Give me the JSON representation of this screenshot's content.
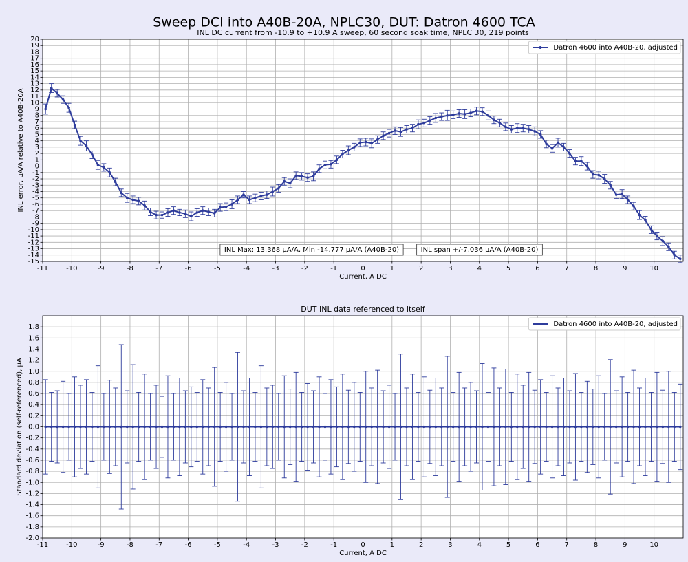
{
  "title": "Sweep DCI into A40B-20A, NPLC30, DUT: Datron 4600 TCA",
  "chart_data": [
    {
      "type": "line",
      "title": "INL DC current from -10.9 to +10.9 A sweep, 60 second soak time, NPLC 30, 219 points",
      "xlabel": "Current, A DC",
      "ylabel": "INL error, μA/A relative to A40B-20A",
      "x": [
        -10.9,
        -10.7,
        -10.5,
        -10.3,
        -10.1,
        -9.9,
        -9.7,
        -9.5,
        -9.3,
        -9.1,
        -8.9,
        -8.7,
        -8.5,
        -8.3,
        -8.1,
        -7.9,
        -7.7,
        -7.5,
        -7.3,
        -7.1,
        -6.9,
        -6.7,
        -6.5,
        -6.3,
        -6.1,
        -5.9,
        -5.7,
        -5.5,
        -5.3,
        -5.1,
        -4.9,
        -4.7,
        -4.5,
        -4.3,
        -4.1,
        -3.9,
        -3.7,
        -3.5,
        -3.3,
        -3.1,
        -2.9,
        -2.7,
        -2.5,
        -2.3,
        -2.1,
        -1.9,
        -1.7,
        -1.5,
        -1.3,
        -1.1,
        -0.9,
        -0.7,
        -0.5,
        -0.3,
        -0.1,
        0.1,
        0.3,
        0.5,
        0.7,
        0.9,
        1.1,
        1.3,
        1.5,
        1.7,
        1.9,
        2.1,
        2.3,
        2.5,
        2.7,
        2.9,
        3.1,
        3.3,
        3.5,
        3.7,
        3.9,
        4.1,
        4.3,
        4.5,
        4.7,
        4.9,
        5.1,
        5.3,
        5.5,
        5.7,
        5.9,
        6.1,
        6.3,
        6.5,
        6.7,
        6.9,
        7.1,
        7.3,
        7.5,
        7.7,
        7.9,
        8.1,
        8.3,
        8.5,
        8.7,
        8.9,
        9.1,
        9.3,
        9.5,
        9.7,
        9.9,
        10.1,
        10.3,
        10.5,
        10.7,
        10.9
      ],
      "series": [
        {
          "name": "Datron 4600 into A40B-20, adjusted",
          "color": "#2e3c9c",
          "values": [
            9.0,
            12.3,
            11.5,
            10.5,
            9.2,
            6.5,
            4.0,
            3.2,
            1.8,
            0.2,
            -0.2,
            -1.0,
            -2.5,
            -4.2,
            -5.0,
            -5.3,
            -5.5,
            -6.2,
            -7.2,
            -7.7,
            -7.7,
            -7.3,
            -7.0,
            -7.3,
            -7.5,
            -7.9,
            -7.3,
            -7.0,
            -7.2,
            -7.4,
            -6.5,
            -6.4,
            -6.0,
            -5.3,
            -4.5,
            -5.3,
            -5.0,
            -4.7,
            -4.5,
            -4.0,
            -3.5,
            -2.4,
            -2.7,
            -1.5,
            -1.6,
            -1.8,
            -1.6,
            -0.4,
            0.2,
            0.3,
            1.0,
            1.9,
            2.5,
            3.0,
            3.7,
            3.8,
            3.6,
            4.2,
            4.8,
            5.2,
            5.6,
            5.4,
            5.8,
            6.0,
            6.6,
            6.8,
            7.2,
            7.6,
            7.8,
            8.0,
            8.1,
            8.3,
            8.2,
            8.4,
            8.7,
            8.6,
            8.0,
            7.3,
            6.8,
            6.2,
            5.8,
            6.0,
            6.0,
            5.8,
            5.5,
            5.0,
            3.5,
            2.8,
            3.7,
            3.0,
            2.0,
            0.8,
            0.8,
            0.0,
            -1.3,
            -1.4,
            -2.0,
            -3.0,
            -4.5,
            -4.4,
            -5.3,
            -6.3,
            -7.7,
            -8.5,
            -10.0,
            -11.0,
            -11.8,
            -12.7,
            -14.0,
            -14.6
          ],
          "errors": [
            0.8,
            0.7,
            0.6,
            0.6,
            0.7,
            0.6,
            0.7,
            0.8,
            0.6,
            0.7,
            0.6,
            0.7,
            0.6,
            0.6,
            0.7,
            0.6,
            0.6,
            0.7,
            0.6,
            0.6,
            0.5,
            0.6,
            0.6,
            0.5,
            0.6,
            0.7,
            0.6,
            0.6,
            0.6,
            0.6,
            0.6,
            0.6,
            0.7,
            0.6,
            0.5,
            0.6,
            0.6,
            0.6,
            0.6,
            0.7,
            0.6,
            0.6,
            0.7,
            0.6,
            0.6,
            0.6,
            0.7,
            0.6,
            0.6,
            0.6,
            0.6,
            0.6,
            0.7,
            0.6,
            0.6,
            0.6,
            0.7,
            0.6,
            0.6,
            0.6,
            0.6,
            0.7,
            0.6,
            0.6,
            0.7,
            0.6,
            0.6,
            0.7,
            0.6,
            0.8,
            0.6,
            0.6,
            0.7,
            0.6,
            0.6,
            0.6,
            0.7,
            0.6,
            0.6,
            0.6,
            0.6,
            0.7,
            0.6,
            0.6,
            0.7,
            0.6,
            0.6,
            0.6,
            0.7,
            0.6,
            0.6,
            0.6,
            0.7,
            0.6,
            0.6,
            0.6,
            0.7,
            0.6,
            0.6,
            0.7,
            0.6,
            0.6,
            0.7,
            0.6,
            0.6,
            0.6,
            0.7,
            0.6,
            0.6,
            0.6
          ]
        }
      ],
      "annotations": [
        "INL Max: 13.368 μA/A, Min -14.777 μA/A (A40B-20)",
        "INL span +/-7.036 μA/A (A40B-20)"
      ],
      "xlim": [
        -11,
        11
      ],
      "xticks": [
        -11,
        -10,
        -9,
        -8,
        -7,
        -6,
        -5,
        -4,
        -3,
        -2,
        -1,
        0,
        1,
        2,
        3,
        4,
        5,
        6,
        7,
        8,
        9,
        10
      ],
      "ylim": [
        -15,
        20
      ],
      "yticks": [
        -15,
        -14,
        -13,
        -12,
        -11,
        -10,
        -9,
        -8,
        -7,
        -6,
        -5,
        -4,
        -3,
        -2,
        -1,
        0,
        1,
        2,
        3,
        4,
        5,
        6,
        7,
        8,
        9,
        10,
        11,
        12,
        13,
        14,
        15,
        16,
        17,
        18,
        19,
        20
      ],
      "grid": true,
      "legend": "upper right"
    },
    {
      "type": "line",
      "title": "DUT INL data referenced to itself",
      "xlabel": "Current, A DC",
      "ylabel": "Standard deviation (self-referenced), μA",
      "x": [
        -10.9,
        -10.7,
        -10.5,
        -10.3,
        -10.1,
        -9.9,
        -9.7,
        -9.5,
        -9.3,
        -9.1,
        -8.9,
        -8.7,
        -8.5,
        -8.3,
        -8.1,
        -7.9,
        -7.7,
        -7.5,
        -7.3,
        -7.1,
        -6.9,
        -6.7,
        -6.5,
        -6.3,
        -6.1,
        -5.9,
        -5.7,
        -5.5,
        -5.3,
        -5.1,
        -4.9,
        -4.7,
        -4.5,
        -4.3,
        -4.1,
        -3.9,
        -3.7,
        -3.5,
        -3.3,
        -3.1,
        -2.9,
        -2.7,
        -2.5,
        -2.3,
        -2.1,
        -1.9,
        -1.7,
        -1.5,
        -1.3,
        -1.1,
        -0.9,
        -0.7,
        -0.5,
        -0.3,
        -0.1,
        0.1,
        0.3,
        0.5,
        0.7,
        0.9,
        1.1,
        1.3,
        1.5,
        1.7,
        1.9,
        2.1,
        2.3,
        2.5,
        2.7,
        2.9,
        3.1,
        3.3,
        3.5,
        3.7,
        3.9,
        4.1,
        4.3,
        4.5,
        4.7,
        4.9,
        5.1,
        5.3,
        5.5,
        5.7,
        5.9,
        6.1,
        6.3,
        6.5,
        6.7,
        6.9,
        7.1,
        7.3,
        7.5,
        7.7,
        7.9,
        8.1,
        8.3,
        8.5,
        8.7,
        8.9,
        9.1,
        9.3,
        9.5,
        9.7,
        9.9,
        10.1,
        10.3,
        10.5,
        10.7,
        10.9
      ],
      "series": [
        {
          "name": "Datron 4600 into A40B-20, adjusted",
          "color": "#2e3c9c",
          "values": [
            0,
            0,
            0,
            0,
            0,
            0,
            0,
            0,
            0,
            0,
            0,
            0,
            0,
            0,
            0,
            0,
            0,
            0,
            0,
            0,
            0,
            0,
            0,
            0,
            0,
            0,
            0,
            0,
            0,
            0,
            0,
            0,
            0,
            0,
            0,
            0,
            0,
            0,
            0,
            0,
            0,
            0,
            0,
            0,
            0,
            0,
            0,
            0,
            0,
            0,
            0,
            0,
            0,
            0,
            0,
            0,
            0,
            0,
            0,
            0,
            0,
            0,
            0,
            0,
            0,
            0,
            0,
            0,
            0,
            0,
            0,
            0,
            0,
            0,
            0,
            0,
            0,
            0,
            0,
            0,
            0,
            0,
            0,
            0,
            0,
            0,
            0,
            0,
            0,
            0,
            0,
            0,
            0,
            0,
            0,
            0,
            0,
            0,
            0,
            0,
            0,
            0,
            0,
            0,
            0,
            0,
            0,
            0,
            0,
            0
          ],
          "errors": [
            0.85,
            0.62,
            0.65,
            0.82,
            0.6,
            0.9,
            0.75,
            0.85,
            0.62,
            1.1,
            0.6,
            0.84,
            0.7,
            1.48,
            0.65,
            1.12,
            0.62,
            0.95,
            0.6,
            0.75,
            0.55,
            0.92,
            0.6,
            0.88,
            0.65,
            0.72,
            0.62,
            0.85,
            0.7,
            1.07,
            0.62,
            0.8,
            0.6,
            1.34,
            0.65,
            0.88,
            0.62,
            1.1,
            0.7,
            0.75,
            0.6,
            0.92,
            0.68,
            0.98,
            0.62,
            0.78,
            0.65,
            0.9,
            0.6,
            0.85,
            0.72,
            0.95,
            0.66,
            0.8,
            0.62,
            1.0,
            0.7,
            1.02,
            0.65,
            0.75,
            0.6,
            1.31,
            0.7,
            0.95,
            0.62,
            0.9,
            0.66,
            0.88,
            0.7,
            1.27,
            0.62,
            0.98,
            0.7,
            0.8,
            0.65,
            1.14,
            0.62,
            1.06,
            0.7,
            1.04,
            0.62,
            0.95,
            0.75,
            0.98,
            0.66,
            0.85,
            0.62,
            0.92,
            0.7,
            0.88,
            0.65,
            0.96,
            0.62,
            0.82,
            0.68,
            0.92,
            0.6,
            1.21,
            0.65,
            0.9,
            0.62,
            1.02,
            0.7,
            0.88,
            0.62,
            0.98,
            0.66,
            1.0,
            0.62,
            0.77
          ]
        }
      ],
      "xlim": [
        -11,
        11
      ],
      "xticks": [
        -11,
        -10,
        -9,
        -8,
        -7,
        -6,
        -5,
        -4,
        -3,
        -2,
        -1,
        0,
        1,
        2,
        3,
        4,
        5,
        6,
        7,
        8,
        9,
        10
      ],
      "ylim": [
        -2,
        2
      ],
      "yticks": [
        {
          "value": -2,
          "label": "-2.0"
        },
        -1.8,
        -1.6,
        -1.4,
        -1.2,
        {
          "value": -1,
          "label": "-1.0"
        },
        -0.8,
        -0.6,
        -0.4,
        -0.2,
        {
          "value": 0,
          "label": "0.0"
        },
        0.2,
        0.4,
        0.6,
        0.8,
        {
          "value": 1,
          "label": "1.0"
        },
        1.2,
        1.4,
        1.6,
        1.8
      ],
      "grid": true,
      "legend": "upper right"
    }
  ]
}
